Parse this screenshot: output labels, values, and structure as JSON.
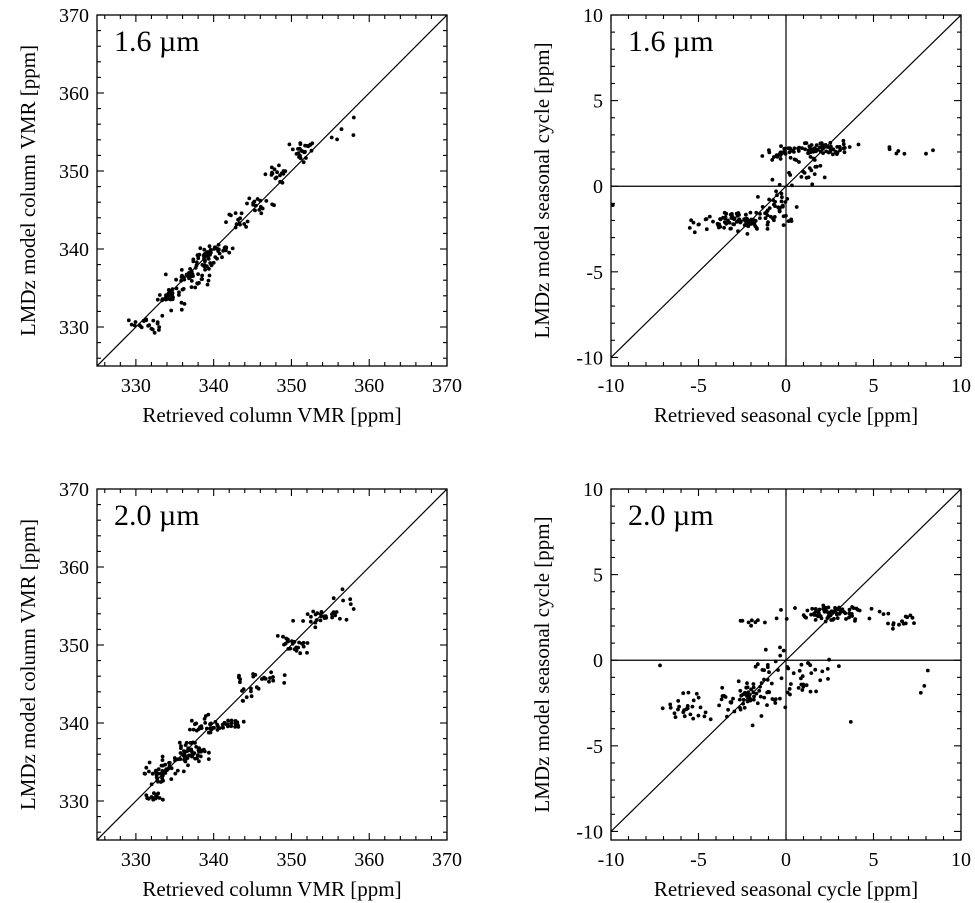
{
  "chart_data": [
    {
      "type": "scatter",
      "panel": "top-left",
      "title": "1.6 µm",
      "xlabel": "Retrieved column VMR [ppm]",
      "ylabel": "LMDz model column VMR [ppm]",
      "xlim": [
        325,
        370
      ],
      "ylim": [
        325,
        370
      ],
      "xticks": [
        330,
        340,
        350,
        360,
        370
      ],
      "yticks": [
        330,
        340,
        350,
        360,
        370
      ],
      "reference_lines": [
        "1:1"
      ],
      "clusters": [
        {
          "center": [
            331.5,
            330.5
          ],
          "spread": [
            1.6,
            1.0
          ],
          "count": 22
        },
        {
          "center": [
            334.5,
            334.0
          ],
          "spread": [
            1.6,
            1.1
          ],
          "count": 34
        },
        {
          "center": [
            337.0,
            336.5
          ],
          "spread": [
            1.5,
            1.1
          ],
          "count": 36
        },
        {
          "center": [
            339.0,
            338.8
          ],
          "spread": [
            1.7,
            1.2
          ],
          "count": 40
        },
        {
          "center": [
            340.5,
            340.0
          ],
          "spread": [
            1.8,
            0.4
          ],
          "count": 18
        },
        {
          "center": [
            343.0,
            343.5
          ],
          "spread": [
            1.4,
            1.0
          ],
          "count": 14
        },
        {
          "center": [
            346.0,
            345.8
          ],
          "spread": [
            1.4,
            0.8
          ],
          "count": 16
        },
        {
          "center": [
            348.5,
            349.6
          ],
          "spread": [
            1.5,
            0.8
          ],
          "count": 18
        },
        {
          "center": [
            351.5,
            352.5
          ],
          "spread": [
            1.6,
            1.0
          ],
          "count": 24
        },
        {
          "center": [
            356.5,
            355.5
          ],
          "spread": [
            2.0,
            1.5
          ],
          "count": 5
        }
      ]
    },
    {
      "type": "scatter",
      "panel": "top-right",
      "title": "1.6 µm",
      "xlabel": "Retrieved seasonal cycle [ppm]",
      "ylabel": "LMDz model seasonal cycle [ppm]",
      "xlim": [
        -10,
        10
      ],
      "ylim": [
        -10.5,
        10
      ],
      "xticks": [
        -10,
        -5,
        0,
        5,
        10
      ],
      "yticks": [
        -10,
        -5,
        0,
        5,
        10
      ],
      "reference_lines": [
        "1:1",
        "x=0",
        "y=0"
      ],
      "clusters": [
        {
          "center": [
            2.0,
            2.2
          ],
          "spread": [
            1.4,
            0.35
          ],
          "count": 70
        },
        {
          "center": [
            -0.3,
            1.9
          ],
          "spread": [
            1.0,
            0.35
          ],
          "count": 22
        },
        {
          "center": [
            -2.5,
            -2.0
          ],
          "spread": [
            1.4,
            0.5
          ],
          "count": 70
        },
        {
          "center": [
            -4.2,
            -2.2
          ],
          "spread": [
            1.2,
            0.4
          ],
          "count": 18
        },
        {
          "center": [
            -0.5,
            -1.0
          ],
          "spread": [
            0.9,
            1.1
          ],
          "count": 40
        },
        {
          "center": [
            1.2,
            0.8
          ],
          "spread": [
            1.1,
            0.8
          ],
          "count": 20
        },
        {
          "center": [
            5.8,
            2.1
          ],
          "spread": [
            1.4,
            0.4
          ],
          "count": 5
        }
      ],
      "extra_points": [
        [
          -9.9,
          -1.1
        ],
        [
          8.4,
          2.1
        ],
        [
          8.0,
          1.9
        ]
      ]
    },
    {
      "type": "scatter",
      "panel": "bottom-left",
      "title": "2.0 µm",
      "xlabel": "Retrieved column VMR [ppm]",
      "ylabel": "LMDz model column VMR [ppm]",
      "xlim": [
        325,
        370
      ],
      "ylim": [
        325,
        370
      ],
      "xticks": [
        330,
        340,
        350,
        360,
        370
      ],
      "yticks": [
        330,
        340,
        350,
        360,
        370
      ],
      "reference_lines": [
        "1:1"
      ],
      "clusters": [
        {
          "center": [
            332.5,
            330.5
          ],
          "spread": [
            1.4,
            0.6
          ],
          "count": 18
        },
        {
          "center": [
            333.5,
            334.0
          ],
          "spread": [
            2.0,
            1.4
          ],
          "count": 45
        },
        {
          "center": [
            337.0,
            336.0
          ],
          "spread": [
            1.8,
            1.4
          ],
          "count": 50
        },
        {
          "center": [
            339.5,
            339.5
          ],
          "spread": [
            1.8,
            1.0
          ],
          "count": 32
        },
        {
          "center": [
            342.0,
            340.0
          ],
          "spread": [
            2.0,
            0.5
          ],
          "count": 20
        },
        {
          "center": [
            344.5,
            344.0
          ],
          "spread": [
            1.5,
            1.8
          ],
          "count": 14
        },
        {
          "center": [
            347.0,
            345.8
          ],
          "spread": [
            1.8,
            0.6
          ],
          "count": 14
        },
        {
          "center": [
            350.0,
            350.0
          ],
          "spread": [
            2.0,
            1.0
          ],
          "count": 24
        },
        {
          "center": [
            354.0,
            353.5
          ],
          "spread": [
            2.4,
            0.9
          ],
          "count": 28
        },
        {
          "center": [
            357.5,
            355.0
          ],
          "spread": [
            1.5,
            2.0
          ],
          "count": 6
        }
      ]
    },
    {
      "type": "scatter",
      "panel": "bottom-right",
      "title": "2.0 µm",
      "xlabel": "Retrieved seasonal cycle [ppm]",
      "ylabel": "LMDz model seasonal cycle [ppm]",
      "xlim": [
        -10,
        10
      ],
      "ylim": [
        -10.5,
        10
      ],
      "xticks": [
        -10,
        -5,
        0,
        5,
        10
      ],
      "yticks": [
        -10,
        -5,
        0,
        5,
        10
      ],
      "reference_lines": [
        "1:1",
        "x=0",
        "y=0"
      ],
      "clusters": [
        {
          "center": [
            2.5,
            2.7
          ],
          "spread": [
            2.0,
            0.4
          ],
          "count": 80
        },
        {
          "center": [
            -1.5,
            2.3
          ],
          "spread": [
            1.0,
            0.25
          ],
          "count": 10
        },
        {
          "center": [
            6.5,
            2.4
          ],
          "spread": [
            0.9,
            0.5
          ],
          "count": 14
        },
        {
          "center": [
            -2.0,
            -2.2
          ],
          "spread": [
            1.4,
            0.8
          ],
          "count": 60
        },
        {
          "center": [
            -5.5,
            -2.8
          ],
          "spread": [
            1.3,
            0.6
          ],
          "count": 28
        },
        {
          "center": [
            -0.5,
            -0.8
          ],
          "spread": [
            1.3,
            1.4
          ],
          "count": 30
        },
        {
          "center": [
            1.8,
            -1.0
          ],
          "spread": [
            1.4,
            1.3
          ],
          "count": 18
        }
      ],
      "extra_points": [
        [
          7.9,
          -1.5
        ],
        [
          8.1,
          -0.6
        ],
        [
          7.7,
          -1.9
        ],
        [
          -7.2,
          -0.3
        ],
        [
          3.7,
          -3.6
        ]
      ]
    }
  ]
}
